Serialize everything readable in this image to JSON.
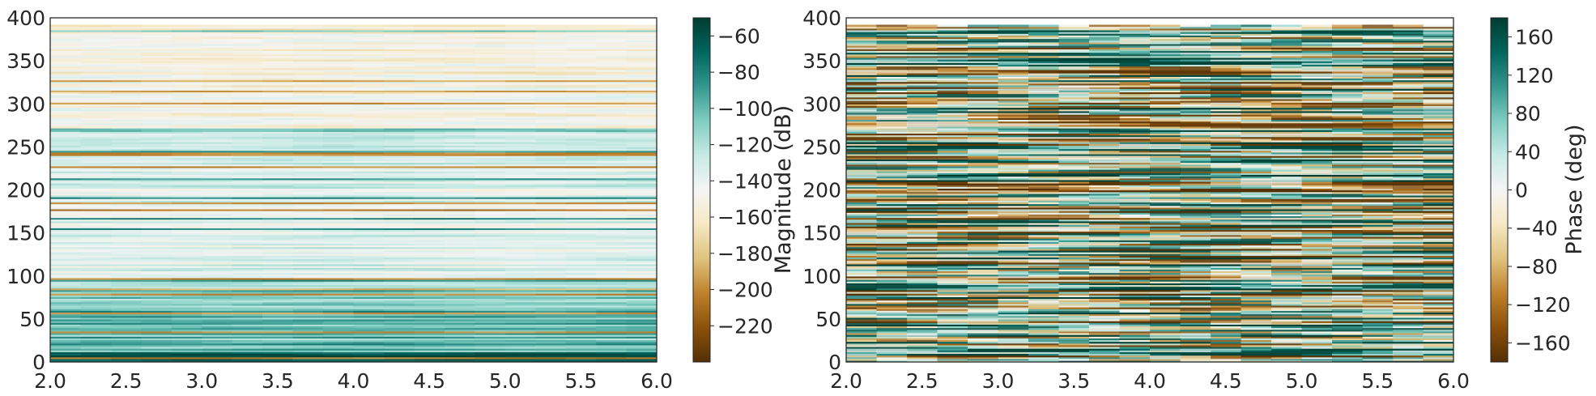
{
  "chart_data": [
    {
      "type": "heatmap",
      "xlim": [
        2.0,
        6.0
      ],
      "ylim": [
        0,
        400
      ],
      "xticks": [
        "2.0",
        "2.5",
        "3.0",
        "3.5",
        "4.0",
        "4.5",
        "5.0",
        "5.5",
        "6.0"
      ],
      "yticks": [
        "0",
        "50",
        "100",
        "150",
        "200",
        "250",
        "300",
        "350",
        "400"
      ],
      "colormap": "BrBG",
      "colorbar": {
        "label": "Magnitude (dB)",
        "range": [
          -240,
          -50
        ],
        "ticks": [
          "−60",
          "−80",
          "−100",
          "−120",
          "−140",
          "−160",
          "−180",
          "−200",
          "−220"
        ],
        "tick_values": [
          -60,
          -80,
          -100,
          -120,
          -140,
          -160,
          -180,
          -200,
          -220
        ]
      },
      "data_extent_y": [
        0,
        392
      ],
      "description_colors": {
        "low": "#543005",
        "mid": "#f5f5f5",
        "high": "#003c30"
      }
    },
    {
      "type": "heatmap",
      "xlim": [
        2.0,
        6.0
      ],
      "ylim": [
        0,
        400
      ],
      "xticks": [
        "2.0",
        "2.5",
        "3.0",
        "3.5",
        "4.0",
        "4.5",
        "5.0",
        "5.5",
        "6.0"
      ],
      "yticks": [
        "0",
        "50",
        "100",
        "150",
        "200",
        "250",
        "300",
        "350",
        "400"
      ],
      "colormap": "BrBG",
      "colorbar": {
        "label": "Phase (deg)",
        "range": [
          -180,
          180
        ],
        "ticks": [
          "160",
          "120",
          "80",
          "40",
          "0",
          "−40",
          "−80",
          "−120",
          "−160"
        ],
        "tick_values": [
          160,
          120,
          80,
          40,
          0,
          -40,
          -80,
          -120,
          -160
        ]
      },
      "data_extent_y": [
        0,
        392
      ],
      "description_colors": {
        "low": "#543005",
        "mid": "#f5f5f5",
        "high": "#003c30"
      }
    }
  ]
}
